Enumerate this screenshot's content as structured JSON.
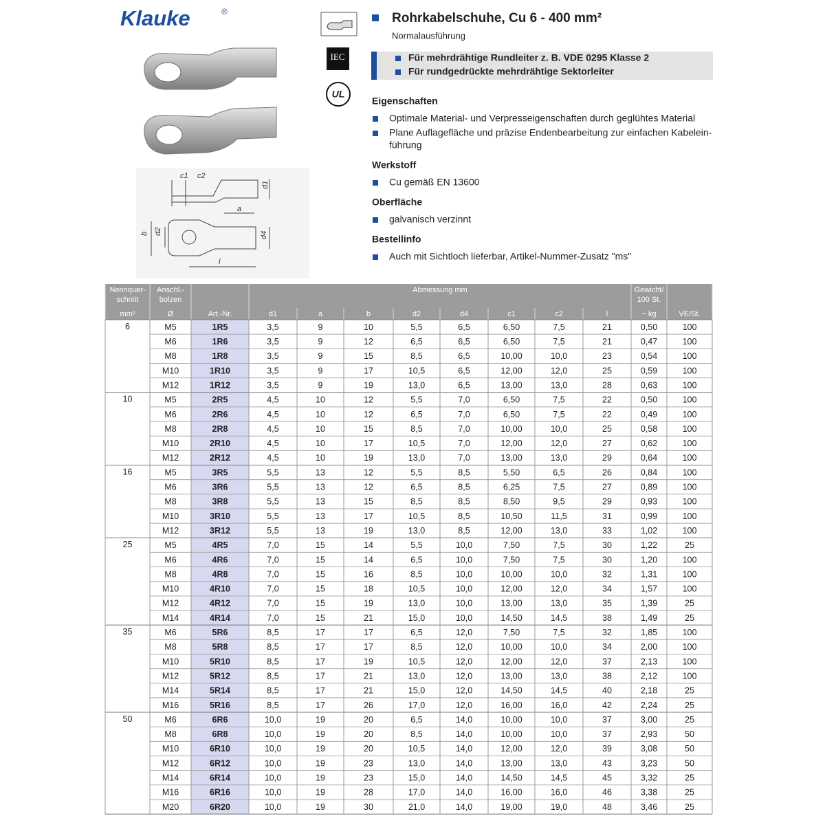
{
  "logo": {
    "name": "Klauke",
    "mark": "®"
  },
  "icons": {
    "iec": "IEC",
    "ul": "UL"
  },
  "drawing": {
    "c1": "c1",
    "c2": "c2",
    "d1": "d1",
    "a": "a",
    "b": "b",
    "d2": "d2",
    "d4": "d4",
    "l": "l"
  },
  "title": "Rohrkabelschuhe, Cu 6 - 400 mm²",
  "subtitle": "Normalausführung",
  "highlights": [
    "Für mehrdrähtige Rundleiter z. B. VDE 0295 Klasse 2",
    "Für rundgedrückte mehrdrähtige Sektorleiter"
  ],
  "sections": [
    {
      "heading": "Eigenschaften",
      "items": [
        [
          "Optimale Material- und Verpresseigenschaften durch geglühtes Material"
        ],
        [
          "Plane Auflagefläche und präzise Endenbearbeitung zur einfachen Kabelein-",
          "führung"
        ]
      ]
    },
    {
      "heading": "Werkstoff",
      "items": [
        [
          "Cu gemäß EN 13600"
        ]
      ]
    },
    {
      "heading": "Oberfläche",
      "items": [
        [
          "galvanisch verzinnt"
        ]
      ]
    },
    {
      "heading": "Bestellinfo",
      "items": [
        [
          "Auch mit Sichtloch lieferbar, Artikel-Nummer-Zusatz \"ms\""
        ]
      ]
    }
  ],
  "table": {
    "head": {
      "size": [
        "Nennquer-",
        "schnitt"
      ],
      "bolt": [
        "Anschl.-",
        "bolzen"
      ],
      "dimensions": "Abmessung mm",
      "weight": [
        "Gewicht/",
        "100 St."
      ]
    },
    "units": [
      "mm²",
      "Ø",
      "Art.-Nr.",
      "d1",
      "a",
      "b",
      "d2",
      "d4",
      "c1",
      "c2",
      "l",
      "~ kg",
      "VE/St."
    ],
    "groups": [
      {
        "size": "6",
        "rows": [
          [
            "M5",
            "1R5",
            "3,5",
            "9",
            "10",
            "5,5",
            "6,5",
            "6,50",
            "7,5",
            "21",
            "0,50",
            "100"
          ],
          [
            "M6",
            "1R6",
            "3,5",
            "9",
            "12",
            "6,5",
            "6,5",
            "6,50",
            "7,5",
            "21",
            "0,47",
            "100"
          ],
          [
            "M8",
            "1R8",
            "3,5",
            "9",
            "15",
            "8,5",
            "6,5",
            "10,00",
            "10,0",
            "23",
            "0,54",
            "100"
          ],
          [
            "M10",
            "1R10",
            "3,5",
            "9",
            "17",
            "10,5",
            "6,5",
            "12,00",
            "12,0",
            "25",
            "0,59",
            "100"
          ],
          [
            "M12",
            "1R12",
            "3,5",
            "9",
            "19",
            "13,0",
            "6,5",
            "13,00",
            "13,0",
            "28",
            "0,63",
            "100"
          ]
        ]
      },
      {
        "size": "10",
        "rows": [
          [
            "M5",
            "2R5",
            "4,5",
            "10",
            "12",
            "5,5",
            "7,0",
            "6,50",
            "7,5",
            "22",
            "0,50",
            "100"
          ],
          [
            "M6",
            "2R6",
            "4,5",
            "10",
            "12",
            "6,5",
            "7,0",
            "6,50",
            "7,5",
            "22",
            "0,49",
            "100"
          ],
          [
            "M8",
            "2R8",
            "4,5",
            "10",
            "15",
            "8,5",
            "7,0",
            "10,00",
            "10,0",
            "25",
            "0,58",
            "100"
          ],
          [
            "M10",
            "2R10",
            "4,5",
            "10",
            "17",
            "10,5",
            "7,0",
            "12,00",
            "12,0",
            "27",
            "0,62",
            "100"
          ],
          [
            "M12",
            "2R12",
            "4,5",
            "10",
            "19",
            "13,0",
            "7,0",
            "13,00",
            "13,0",
            "29",
            "0,64",
            "100"
          ]
        ]
      },
      {
        "size": "16",
        "rows": [
          [
            "M5",
            "3R5",
            "5,5",
            "13",
            "12",
            "5,5",
            "8,5",
            "5,50",
            "6,5",
            "26",
            "0,84",
            "100"
          ],
          [
            "M6",
            "3R6",
            "5,5",
            "13",
            "12",
            "6,5",
            "8,5",
            "6,25",
            "7,5",
            "27",
            "0,89",
            "100"
          ],
          [
            "M8",
            "3R8",
            "5,5",
            "13",
            "15",
            "8,5",
            "8,5",
            "8,50",
            "9,5",
            "29",
            "0,93",
            "100"
          ],
          [
            "M10",
            "3R10",
            "5,5",
            "13",
            "17",
            "10,5",
            "8,5",
            "10,50",
            "11,5",
            "31",
            "0,99",
            "100"
          ],
          [
            "M12",
            "3R12",
            "5,5",
            "13",
            "19",
            "13,0",
            "8,5",
            "12,00",
            "13,0",
            "33",
            "1,02",
            "100"
          ]
        ]
      },
      {
        "size": "25",
        "rows": [
          [
            "M5",
            "4R5",
            "7,0",
            "15",
            "14",
            "5,5",
            "10,0",
            "7,50",
            "7,5",
            "30",
            "1,22",
            "25"
          ],
          [
            "M6",
            "4R6",
            "7,0",
            "15",
            "14",
            "6,5",
            "10,0",
            "7,50",
            "7,5",
            "30",
            "1,20",
            "100"
          ],
          [
            "M8",
            "4R8",
            "7,0",
            "15",
            "16",
            "8,5",
            "10,0",
            "10,00",
            "10,0",
            "32",
            "1,31",
            "100"
          ],
          [
            "M10",
            "4R10",
            "7,0",
            "15",
            "18",
            "10,5",
            "10,0",
            "12,00",
            "12,0",
            "34",
            "1,57",
            "100"
          ],
          [
            "M12",
            "4R12",
            "7,0",
            "15",
            "19",
            "13,0",
            "10,0",
            "13,00",
            "13,0",
            "35",
            "1,39",
            "25"
          ],
          [
            "M14",
            "4R14",
            "7,0",
            "15",
            "21",
            "15,0",
            "10,0",
            "14,50",
            "14,5",
            "38",
            "1,49",
            "25"
          ]
        ]
      },
      {
        "size": "35",
        "rows": [
          [
            "M6",
            "5R6",
            "8,5",
            "17",
            "17",
            "6,5",
            "12,0",
            "7,50",
            "7,5",
            "32",
            "1,85",
            "100"
          ],
          [
            "M8",
            "5R8",
            "8,5",
            "17",
            "17",
            "8,5",
            "12,0",
            "10,00",
            "10,0",
            "34",
            "2,00",
            "100"
          ],
          [
            "M10",
            "5R10",
            "8,5",
            "17",
            "19",
            "10,5",
            "12,0",
            "12,00",
            "12,0",
            "37",
            "2,13",
            "100"
          ],
          [
            "M12",
            "5R12",
            "8,5",
            "17",
            "21",
            "13,0",
            "12,0",
            "13,00",
            "13,0",
            "38",
            "2,12",
            "100"
          ],
          [
            "M14",
            "5R14",
            "8,5",
            "17",
            "21",
            "15,0",
            "12,0",
            "14,50",
            "14,5",
            "40",
            "2,18",
            "25"
          ],
          [
            "M16",
            "5R16",
            "8,5",
            "17",
            "26",
            "17,0",
            "12,0",
            "16,00",
            "16,0",
            "42",
            "2,24",
            "25"
          ]
        ]
      },
      {
        "size": "50",
        "rows": [
          [
            "M6",
            "6R6",
            "10,0",
            "19",
            "20",
            "6,5",
            "14,0",
            "10,00",
            "10,0",
            "37",
            "3,00",
            "25"
          ],
          [
            "M8",
            "6R8",
            "10,0",
            "19",
            "20",
            "8,5",
            "14,0",
            "10,00",
            "10,0",
            "37",
            "2,93",
            "50"
          ],
          [
            "M10",
            "6R10",
            "10,0",
            "19",
            "20",
            "10,5",
            "14,0",
            "12,00",
            "12,0",
            "39",
            "3,08",
            "50"
          ],
          [
            "M12",
            "6R12",
            "10,0",
            "19",
            "23",
            "13,0",
            "14,0",
            "13,00",
            "13,0",
            "43",
            "3,23",
            "50"
          ],
          [
            "M14",
            "6R14",
            "10,0",
            "19",
            "23",
            "15,0",
            "14,0",
            "14,50",
            "14,5",
            "45",
            "3,32",
            "25"
          ],
          [
            "M16",
            "6R16",
            "10,0",
            "19",
            "28",
            "17,0",
            "14,0",
            "16,00",
            "16,0",
            "46",
            "3,38",
            "25"
          ],
          [
            "M20",
            "6R20",
            "10,0",
            "19",
            "30",
            "21,0",
            "14,0",
            "19,00",
            "19,0",
            "48",
            "3,46",
            "25"
          ]
        ]
      }
    ]
  }
}
